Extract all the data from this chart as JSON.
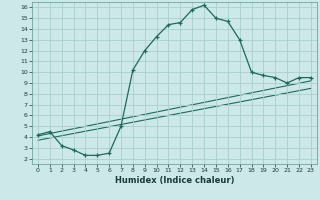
{
  "title": "",
  "xlabel": "Humidex (Indice chaleur)",
  "bg_color": "#cce8e8",
  "grid_color": "#aacece",
  "line_color": "#1a6b5a",
  "xlim": [
    -0.5,
    23.5
  ],
  "ylim": [
    1.5,
    16.5
  ],
  "xticks": [
    0,
    1,
    2,
    3,
    4,
    5,
    6,
    7,
    8,
    9,
    10,
    11,
    12,
    13,
    14,
    15,
    16,
    17,
    18,
    19,
    20,
    21,
    22,
    23
  ],
  "yticks": [
    2,
    3,
    4,
    5,
    6,
    7,
    8,
    9,
    10,
    11,
    12,
    13,
    14,
    15,
    16
  ],
  "main_curve_x": [
    0,
    1,
    2,
    3,
    4,
    5,
    6,
    7,
    8,
    9,
    10,
    11,
    12,
    13,
    14,
    15,
    16,
    17,
    18,
    19,
    20,
    21,
    22,
    23
  ],
  "main_curve_y": [
    4.2,
    4.5,
    3.2,
    2.8,
    2.3,
    2.3,
    2.5,
    5.0,
    10.2,
    12.0,
    13.3,
    14.4,
    14.6,
    15.8,
    16.2,
    15.0,
    14.7,
    13.0,
    10.0,
    9.7,
    9.5,
    9.0,
    9.5,
    9.5
  ],
  "line2_x": [
    0,
    23
  ],
  "line2_y": [
    4.1,
    9.2
  ],
  "line3_x": [
    0,
    23
  ],
  "line3_y": [
    3.7,
    8.5
  ]
}
